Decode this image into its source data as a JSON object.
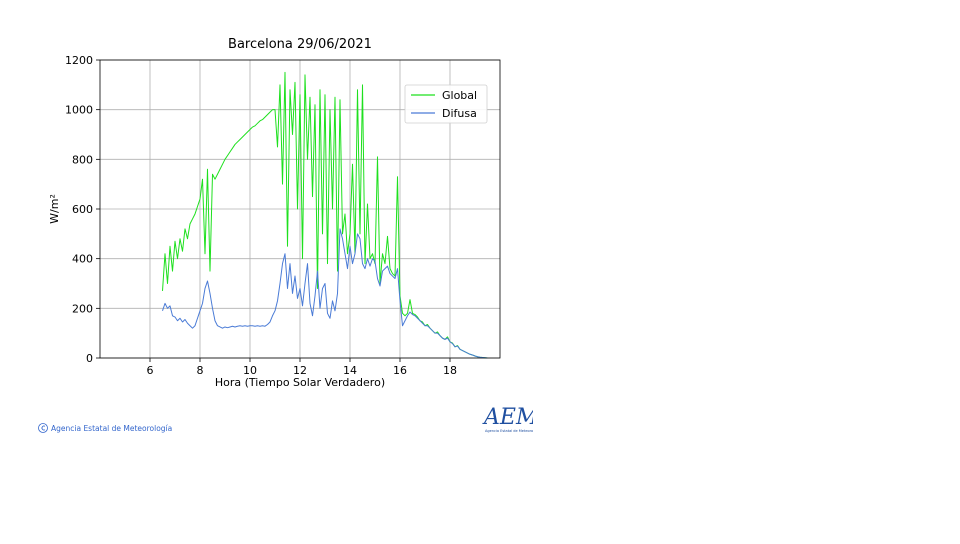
{
  "chart_data": {
    "type": "line",
    "title": "Barcelona 29/06/2021",
    "x_label": "Hora (Tiempo Solar Verdadero)",
    "y_label": "W/m²",
    "xlim": [
      4,
      20
    ],
    "xticks": [
      6,
      8,
      10,
      12,
      14,
      16,
      18
    ],
    "ylim": [
      0,
      1200
    ],
    "yticks": [
      0,
      200,
      400,
      600,
      800,
      1000,
      1200
    ],
    "grid": true,
    "legend": "upper right",
    "x": [
      6.5,
      6.6,
      6.7,
      6.8,
      6.9,
      7.0,
      7.1,
      7.2,
      7.3,
      7.4,
      7.5,
      7.6,
      7.7,
      7.8,
      7.9,
      8.0,
      8.1,
      8.2,
      8.3,
      8.4,
      8.5,
      8.6,
      8.7,
      8.8,
      8.9,
      9.0,
      9.1,
      9.2,
      9.3,
      9.4,
      9.5,
      9.6,
      9.7,
      9.8,
      9.9,
      10.0,
      10.1,
      10.2,
      10.3,
      10.4,
      10.5,
      10.6,
      10.7,
      10.8,
      10.9,
      11.0,
      11.1,
      11.2,
      11.3,
      11.4,
      11.5,
      11.6,
      11.7,
      11.8,
      11.9,
      12.0,
      12.1,
      12.2,
      12.3,
      12.4,
      12.5,
      12.6,
      12.7,
      12.8,
      12.9,
      13.0,
      13.1,
      13.2,
      13.3,
      13.4,
      13.5,
      13.6,
      13.7,
      13.8,
      13.9,
      14.0,
      14.1,
      14.2,
      14.3,
      14.4,
      14.5,
      14.6,
      14.7,
      14.8,
      14.9,
      15.0,
      15.1,
      15.2,
      15.3,
      15.4,
      15.5,
      15.6,
      15.7,
      15.8,
      15.9,
      16.0,
      16.1,
      16.2,
      16.3,
      16.4,
      16.5,
      16.6,
      16.7,
      16.8,
      16.9,
      17.0,
      17.1,
      17.2,
      17.3,
      17.4,
      17.5,
      17.6,
      17.7,
      17.8,
      17.9,
      18.0,
      18.1,
      18.2,
      18.3,
      18.4,
      18.5,
      18.6,
      18.7,
      18.8,
      18.9,
      19.0,
      19.1,
      19.2,
      19.3,
      19.4,
      19.5
    ],
    "series": [
      {
        "name": "Global",
        "color": "#1ee01e",
        "values": [
          270,
          420,
          300,
          450,
          350,
          470,
          400,
          480,
          430,
          520,
          480,
          540,
          560,
          580,
          610,
          640,
          720,
          420,
          760,
          350,
          740,
          720,
          740,
          760,
          780,
          800,
          815,
          830,
          845,
          860,
          870,
          880,
          890,
          900,
          910,
          920,
          930,
          935,
          945,
          955,
          960,
          970,
          980,
          990,
          1000,
          1000,
          850,
          1100,
          700,
          1150,
          450,
          1080,
          900,
          1110,
          600,
          1060,
          400,
          1140,
          800,
          1050,
          650,
          1020,
          280,
          1080,
          500,
          1060,
          380,
          1000,
          600,
          1050,
          350,
          1040,
          500,
          580,
          420,
          500,
          780,
          420,
          1080,
          500,
          1100,
          380,
          620,
          400,
          420,
          380,
          810,
          300,
          420,
          380,
          490,
          360,
          340,
          330,
          730,
          250,
          180,
          170,
          180,
          235,
          180,
          175,
          165,
          150,
          145,
          130,
          135,
          120,
          110,
          100,
          105,
          90,
          80,
          75,
          85,
          65,
          60,
          45,
          50,
          35,
          30,
          25,
          20,
          15,
          12,
          8,
          5,
          3,
          2,
          1,
          0
        ]
      },
      {
        "name": "Difusa",
        "color": "#4a7bd6",
        "values": [
          190,
          220,
          200,
          210,
          170,
          165,
          150,
          160,
          145,
          155,
          140,
          130,
          120,
          130,
          160,
          190,
          220,
          280,
          310,
          260,
          200,
          150,
          130,
          125,
          120,
          125,
          122,
          125,
          128,
          125,
          128,
          130,
          128,
          130,
          128,
          130,
          130,
          128,
          130,
          128,
          130,
          128,
          135,
          145,
          170,
          190,
          230,
          300,
          380,
          420,
          280,
          380,
          260,
          330,
          240,
          280,
          210,
          300,
          380,
          220,
          170,
          250,
          350,
          200,
          280,
          300,
          180,
          160,
          230,
          190,
          260,
          520,
          480,
          420,
          360,
          450,
          380,
          420,
          500,
          480,
          380,
          360,
          400,
          370,
          400,
          390,
          320,
          290,
          350,
          360,
          370,
          340,
          330,
          320,
          360,
          230,
          130,
          150,
          170,
          185,
          175,
          170,
          160,
          150,
          140,
          130,
          130,
          120,
          110,
          100,
          100,
          90,
          80,
          75,
          80,
          65,
          58,
          45,
          48,
          35,
          30,
          25,
          20,
          15,
          12,
          8,
          5,
          3,
          2,
          1,
          0
        ]
      }
    ]
  },
  "footer": "Agencia Estatal de Meteorología",
  "logo": {
    "text": "AEMe",
    "subtitle": "Agencia Estatal de Meteorología"
  }
}
